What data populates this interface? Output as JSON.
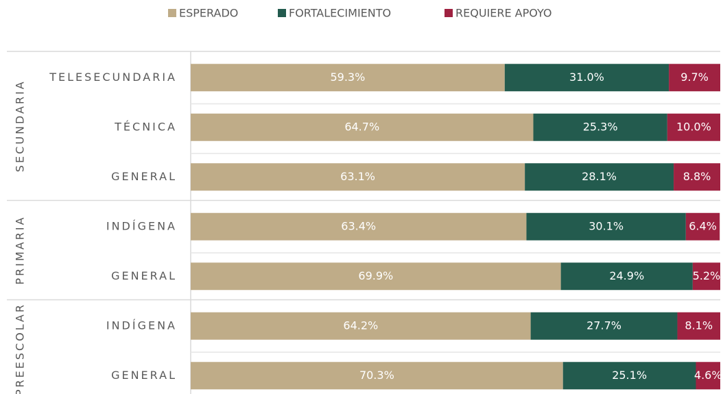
{
  "chart_data": {
    "type": "stacked-bar-horizontal",
    "groups": [
      {
        "name": "SECUNDARIA",
        "categories": [
          "TELESECUNDARIA",
          "TÉCNICA",
          "GENERAL"
        ]
      },
      {
        "name": "PRIMARIA",
        "categories": [
          "INDÍGENA",
          "GENERAL"
        ]
      },
      {
        "name": "PREESCOLAR",
        "categories": [
          "INDÍGENA",
          "GENERAL"
        ]
      }
    ],
    "series": [
      {
        "name": "ESPERADO",
        "color": "#bfac88",
        "values": [
          59.3,
          64.7,
          63.1,
          63.4,
          69.9,
          64.2,
          70.3
        ],
        "value_labels": [
          "59.3%",
          "64.7%",
          "63.1%",
          "63.4%",
          "69.9%",
          "64.2%",
          "70.3%"
        ]
      },
      {
        "name": "FORTALECIMIENTO",
        "color": "#235b4e",
        "values": [
          31.0,
          25.3,
          28.1,
          30.1,
          24.9,
          27.7,
          25.1
        ],
        "value_labels": [
          "31.0%",
          "25.3%",
          "28.1%",
          "30.1%",
          "24.9%",
          "27.7%",
          "25.1%"
        ]
      },
      {
        "name": "REQUIERE APOYO",
        "color": "#9f2241",
        "values": [
          9.7,
          10.0,
          8.8,
          6.4,
          5.2,
          8.1,
          4.6
        ],
        "value_labels": [
          "9.7%",
          "10.0%",
          "8.8%",
          "6.4%",
          "5.2%",
          "8.1%",
          "4.6%"
        ]
      }
    ],
    "xlim": [
      0,
      100
    ],
    "legend": "top"
  }
}
